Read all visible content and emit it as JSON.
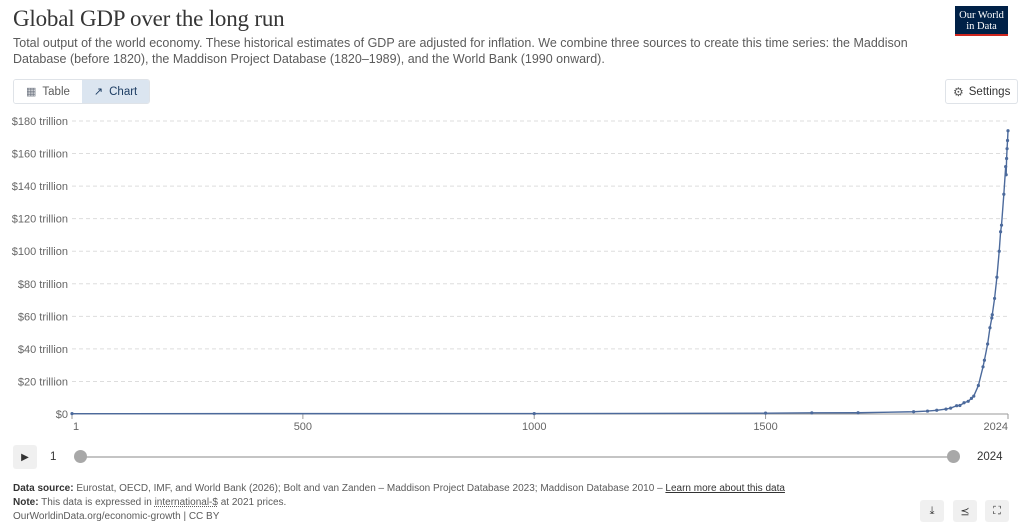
{
  "header": {
    "title": "Global GDP over the long run",
    "subtitle": "Total output of the world economy. These historical estimates of GDP are adjusted for inflation. We combine three sources to create this time series: the Maddison Database (before 1820), the Maddison Project Database (1820–1989), and the World Bank (1990 onward).",
    "logo_line1": "Our World",
    "logo_line2": "in Data"
  },
  "tabs": [
    {
      "label": "Table",
      "icon": "table-icon"
    },
    {
      "label": "Chart",
      "icon": "line-chart-icon",
      "active": true
    }
  ],
  "settings_label": "Settings",
  "chart_data": {
    "type": "line",
    "title": "Global GDP over the long run",
    "series_color": "#4c6a9c",
    "ylim": [
      0,
      180
    ],
    "xlim": [
      1,
      2024
    ],
    "y_ticks": [
      {
        "value": 0,
        "label": "$0"
      },
      {
        "value": 20,
        "label": "$20 trillion"
      },
      {
        "value": 40,
        "label": "$40 trillion"
      },
      {
        "value": 60,
        "label": "$60 trillion"
      },
      {
        "value": 80,
        "label": "$80 trillion"
      },
      {
        "value": 100,
        "label": "$100 trillion"
      },
      {
        "value": 120,
        "label": "$120 trillion"
      },
      {
        "value": 140,
        "label": "$140 trillion"
      },
      {
        "value": 160,
        "label": "$160 trillion"
      },
      {
        "value": 180,
        "label": "$180 trillion"
      }
    ],
    "x_ticks": [
      {
        "value": 1,
        "label": "1"
      },
      {
        "value": 500,
        "label": "500"
      },
      {
        "value": 1000,
        "label": "1000"
      },
      {
        "value": 1500,
        "label": "1500"
      },
      {
        "value": 2024,
        "label": "2024"
      }
    ],
    "grid": "horizontal dashed",
    "series": [
      {
        "x": [
          1,
          1000,
          1500,
          1600,
          1700,
          1820,
          1850,
          1870,
          1890,
          1900,
          1913,
          1920,
          1929,
          1938,
          1945,
          1950,
          1960,
          1970,
          1973,
          1980,
          1985,
          1989,
          1990,
          1995,
          2000,
          2005,
          2008,
          2010,
          2015,
          2019,
          2020,
          2021,
          2022,
          2023,
          2024
        ],
        "y": [
          0.21,
          0.25,
          0.52,
          0.7,
          0.76,
          1.38,
          1.8,
          2.3,
          3.0,
          3.6,
          5.1,
          5.2,
          6.9,
          7.8,
          9.6,
          11.0,
          17.5,
          29.0,
          33.0,
          43.0,
          53.0,
          59.0,
          61.0,
          71.0,
          84.0,
          100.0,
          112.0,
          116.0,
          135.0,
          152.0,
          147.0,
          157.0,
          163.0,
          168.0,
          174.0
        ]
      }
    ]
  },
  "timeline": {
    "start_label": "1",
    "end_label": "2024"
  },
  "footer": {
    "source_label": "Data source:",
    "source_text": "Eurostat, OECD, IMF, and World Bank (2026); Bolt and van Zanden – Maddison Project Database 2023; Maddison Database 2010 –",
    "source_link": "Learn more about this data",
    "note_label": "Note:",
    "note_pre": "This data is expressed in",
    "note_term": "international-$",
    "note_post": "at 2021 prices.",
    "url": "OurWorldinData.org/economic-growth | CC BY"
  },
  "footer_buttons": [
    "download-icon",
    "share-icon",
    "fullscreen-icon"
  ]
}
